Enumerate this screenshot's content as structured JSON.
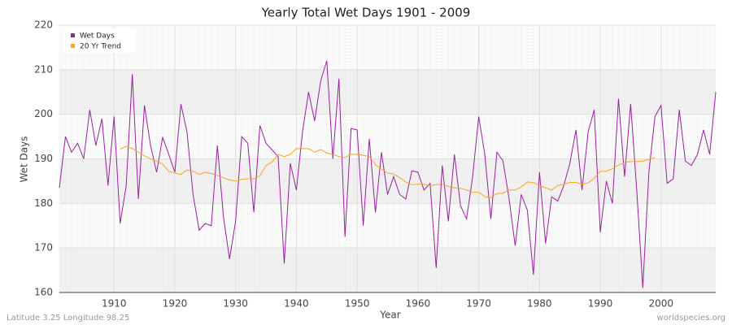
{
  "chart_data": {
    "type": "line",
    "title": "Yearly Total Wet Days 1901 - 2009",
    "x_label": "Year",
    "y_label": "Wet Days",
    "footer_left": "Latitude 3.25 Longitude 98.25",
    "footer_right": "worldspecies.org",
    "x": [
      1901,
      1902,
      1903,
      1904,
      1905,
      1906,
      1907,
      1908,
      1909,
      1910,
      1911,
      1912,
      1913,
      1914,
      1915,
      1916,
      1917,
      1918,
      1919,
      1920,
      1921,
      1922,
      1923,
      1924,
      1925,
      1926,
      1927,
      1928,
      1929,
      1930,
      1931,
      1932,
      1933,
      1934,
      1935,
      1936,
      1937,
      1938,
      1939,
      1940,
      1941,
      1942,
      1943,
      1944,
      1945,
      1946,
      1947,
      1948,
      1949,
      1950,
      1951,
      1952,
      1953,
      1954,
      1955,
      1956,
      1957,
      1958,
      1959,
      1960,
      1961,
      1962,
      1963,
      1964,
      1965,
      1966,
      1967,
      1968,
      1969,
      1970,
      1971,
      1972,
      1973,
      1974,
      1975,
      1976,
      1977,
      1978,
      1979,
      1980,
      1981,
      1982,
      1983,
      1984,
      1985,
      1986,
      1987,
      1988,
      1989,
      1990,
      1991,
      1992,
      1993,
      1994,
      1995,
      1996,
      1997,
      1998,
      1999,
      2000,
      2001,
      2002,
      2003,
      2004,
      2005,
      2006,
      2007,
      2008,
      2009
    ],
    "series": [
      {
        "name": "Wet Days",
        "color": "#9b1fa0",
        "values": [
          183.5,
          195,
          191.5,
          193.5,
          190,
          201,
          193,
          199,
          184,
          199.5,
          175.5,
          184,
          209,
          181,
          202,
          193,
          187,
          194.8,
          191,
          187,
          202.3,
          196,
          182,
          174,
          175.5,
          175,
          193,
          177,
          167.5,
          176,
          195,
          193.5,
          178,
          197.5,
          193.5,
          192,
          190.5,
          166.5,
          189,
          183,
          196,
          205,
          198.5,
          207.5,
          212,
          190,
          208,
          172.5,
          196.8,
          196.5,
          175,
          194.5,
          178,
          191.5,
          182,
          186,
          182,
          181,
          187.3,
          187,
          183,
          184.5,
          165.5,
          188.5,
          176,
          191,
          179.5,
          176.5,
          186,
          199.5,
          191,
          176.5,
          191.5,
          189.5,
          181,
          170.5,
          182,
          178.5,
          164,
          187,
          171,
          181.5,
          180.5,
          184,
          189,
          196.5,
          183,
          196,
          201,
          173.5,
          185,
          180,
          203.5,
          186,
          202.3,
          183,
          161,
          187,
          199.5,
          202,
          184.5,
          185.5,
          201,
          189.5,
          188.5,
          191,
          196.5,
          191,
          205
        ]
      },
      {
        "name": "20 Yr Trend",
        "color": "#f5a623",
        "values": [
          null,
          null,
          null,
          null,
          null,
          null,
          null,
          null,
          null,
          null,
          192.2,
          192.8,
          192.3,
          191.5,
          190.7,
          190,
          189.5,
          188.8,
          187.2,
          186.8,
          186.5,
          187.5,
          187.2,
          186.5,
          187,
          186.7,
          186.3,
          185.7,
          185.3,
          185,
          185.4,
          185.5,
          185.5,
          186.2,
          188.5,
          189.3,
          191,
          190.5,
          191,
          192.3,
          192.3,
          192.3,
          191.5,
          192.1,
          191.3,
          191,
          190.5,
          190.3,
          191,
          191,
          190.8,
          190.5,
          188.7,
          187.7,
          186.8,
          186.6,
          185.8,
          184.8,
          184.2,
          184.3,
          184.3,
          184,
          184.2,
          184.3,
          183.8,
          183.5,
          183.4,
          183,
          182.5,
          182.5,
          181.5,
          181.3,
          182.2,
          182.3,
          183,
          183,
          183.7,
          184.8,
          184.7,
          184,
          183.5,
          183,
          184,
          184.3,
          184.7,
          184.7,
          184.3,
          184.6,
          185.6,
          187.2,
          187.2,
          187.8,
          188.6,
          189.2,
          189.4,
          189.4,
          189.5,
          189.9,
          190.3,
          null,
          null,
          null,
          null,
          null,
          null,
          null,
          null,
          null,
          null
        ]
      }
    ],
    "xlim": [
      1901,
      2009
    ],
    "xticks": [
      1910,
      1920,
      1930,
      1940,
      1950,
      1960,
      1970,
      1980,
      1990,
      2000
    ],
    "ylim": [
      160,
      220
    ],
    "yticks": [
      160,
      170,
      180,
      190,
      200,
      210,
      220
    ],
    "grid": true,
    "legend": "top-left"
  }
}
